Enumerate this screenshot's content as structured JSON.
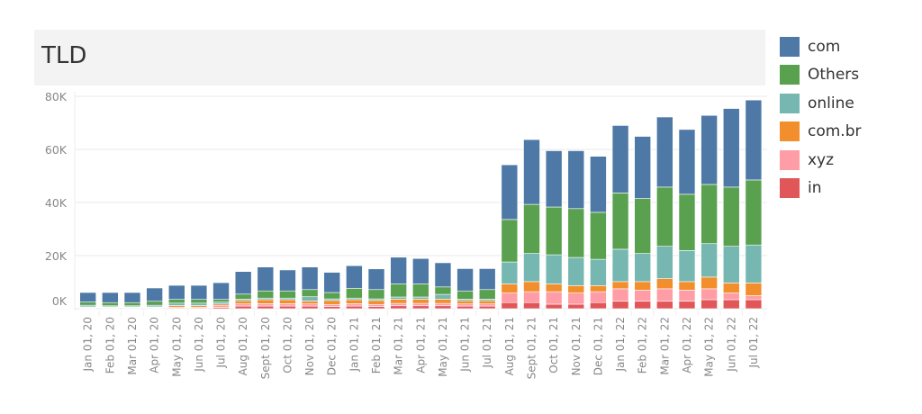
{
  "chart_data": {
    "type": "bar",
    "stacked": true,
    "title": "TLD",
    "xlabel": "",
    "ylabel": "",
    "ylim": [
      0,
      80000
    ],
    "yticks": [
      0,
      20000,
      40000,
      60000,
      80000
    ],
    "ytick_labels": [
      "0K",
      "20K",
      "40K",
      "60K",
      "80K"
    ],
    "grid": true,
    "legend_position": "right",
    "categories": [
      "Jan 01, 20",
      "Feb 01, 20",
      "Mar 01, 20",
      "Apr 01, 20",
      "May 01, 20",
      "Jun 01, 20",
      "Jul 01, 20",
      "Aug 01, 20",
      "Sept 01, 20",
      "Oct 01, 20",
      "Nov 01, 20",
      "Dec 01, 20",
      "Jan 01, 21",
      "Feb 01, 21",
      "Mar 01, 21",
      "Apr 01, 21",
      "May 01, 21",
      "Jun 01, 21",
      "Jul 01, 21",
      "Aug 01, 21",
      "Sept 01, 21",
      "Oct 01, 21",
      "Nov 01, 21",
      "Dec 01, 21",
      "Jan 01, 22",
      "Feb 01, 22",
      "Mar 01, 22",
      "Apr 01, 22",
      "May 01, 22",
      "Jun 01, 22",
      "Jul 01, 22"
    ],
    "series": [
      {
        "name": "in",
        "color": "#e15759",
        "values": [
          200,
          200,
          200,
          200,
          300,
          300,
          500,
          1000,
          1000,
          1000,
          1000,
          800,
          1000,
          800,
          1100,
          1100,
          1100,
          1000,
          1000,
          2300,
          2300,
          1700,
          1700,
          2300,
          2800,
          2800,
          2800,
          2800,
          3400,
          3400,
          3400
        ]
      },
      {
        "name": "xyz",
        "color": "#ff9da7",
        "values": [
          300,
          300,
          300,
          300,
          300,
          300,
          800,
          800,
          900,
          900,
          800,
          800,
          900,
          800,
          900,
          900,
          900,
          800,
          800,
          3600,
          4100,
          4700,
          4200,
          4100,
          4700,
          4200,
          4700,
          4200,
          4100,
          2500,
          1500
        ]
      },
      {
        "name": "com.br",
        "color": "#f28e2b",
        "values": [
          200,
          200,
          200,
          200,
          600,
          600,
          500,
          1200,
          1500,
          1500,
          1100,
          1500,
          1500,
          1500,
          1600,
          1600,
          1600,
          1200,
          1200,
          3400,
          3800,
          2900,
          2800,
          2300,
          2700,
          3200,
          3800,
          3200,
          4400,
          3800,
          4800
        ]
      },
      {
        "name": "online",
        "color": "#76b7b2",
        "values": [
          600,
          400,
          400,
          600,
          900,
          900,
          700,
          600,
          600,
          600,
          1600,
          600,
          600,
          600,
          800,
          800,
          1800,
          600,
          600,
          8300,
          10600,
          11000,
          10600,
          9900,
          12200,
          10600,
          12200,
          11700,
          12600,
          13800,
          14300
        ]
      },
      {
        "name": "Others",
        "color": "#59a14f",
        "values": [
          1200,
          1200,
          1200,
          1500,
          1400,
          1400,
          1000,
          1900,
          2700,
          2700,
          2700,
          2400,
          3700,
          3500,
          4900,
          4900,
          2800,
          3100,
          3600,
          16000,
          18500,
          18000,
          18400,
          17700,
          21200,
          20700,
          22300,
          21200,
          22300,
          22300,
          24500
        ]
      },
      {
        "name": "com",
        "color": "#4e79a7",
        "values": [
          3600,
          3800,
          3800,
          5000,
          5300,
          5300,
          6300,
          8500,
          9000,
          7900,
          8500,
          7600,
          8500,
          7800,
          10100,
          9600,
          9100,
          8400,
          7900,
          20600,
          24400,
          21200,
          21800,
          21100,
          25400,
          23400,
          26400,
          24400,
          26000,
          29600,
          30100
        ]
      }
    ]
  },
  "legend": [
    {
      "label": "com",
      "color": "#4e79a7"
    },
    {
      "label": "Others",
      "color": "#59a14f"
    },
    {
      "label": "online",
      "color": "#76b7b2"
    },
    {
      "label": "com.br",
      "color": "#f28e2b"
    },
    {
      "label": "xyz",
      "color": "#ff9da7"
    },
    {
      "label": "in",
      "color": "#e15759"
    }
  ]
}
